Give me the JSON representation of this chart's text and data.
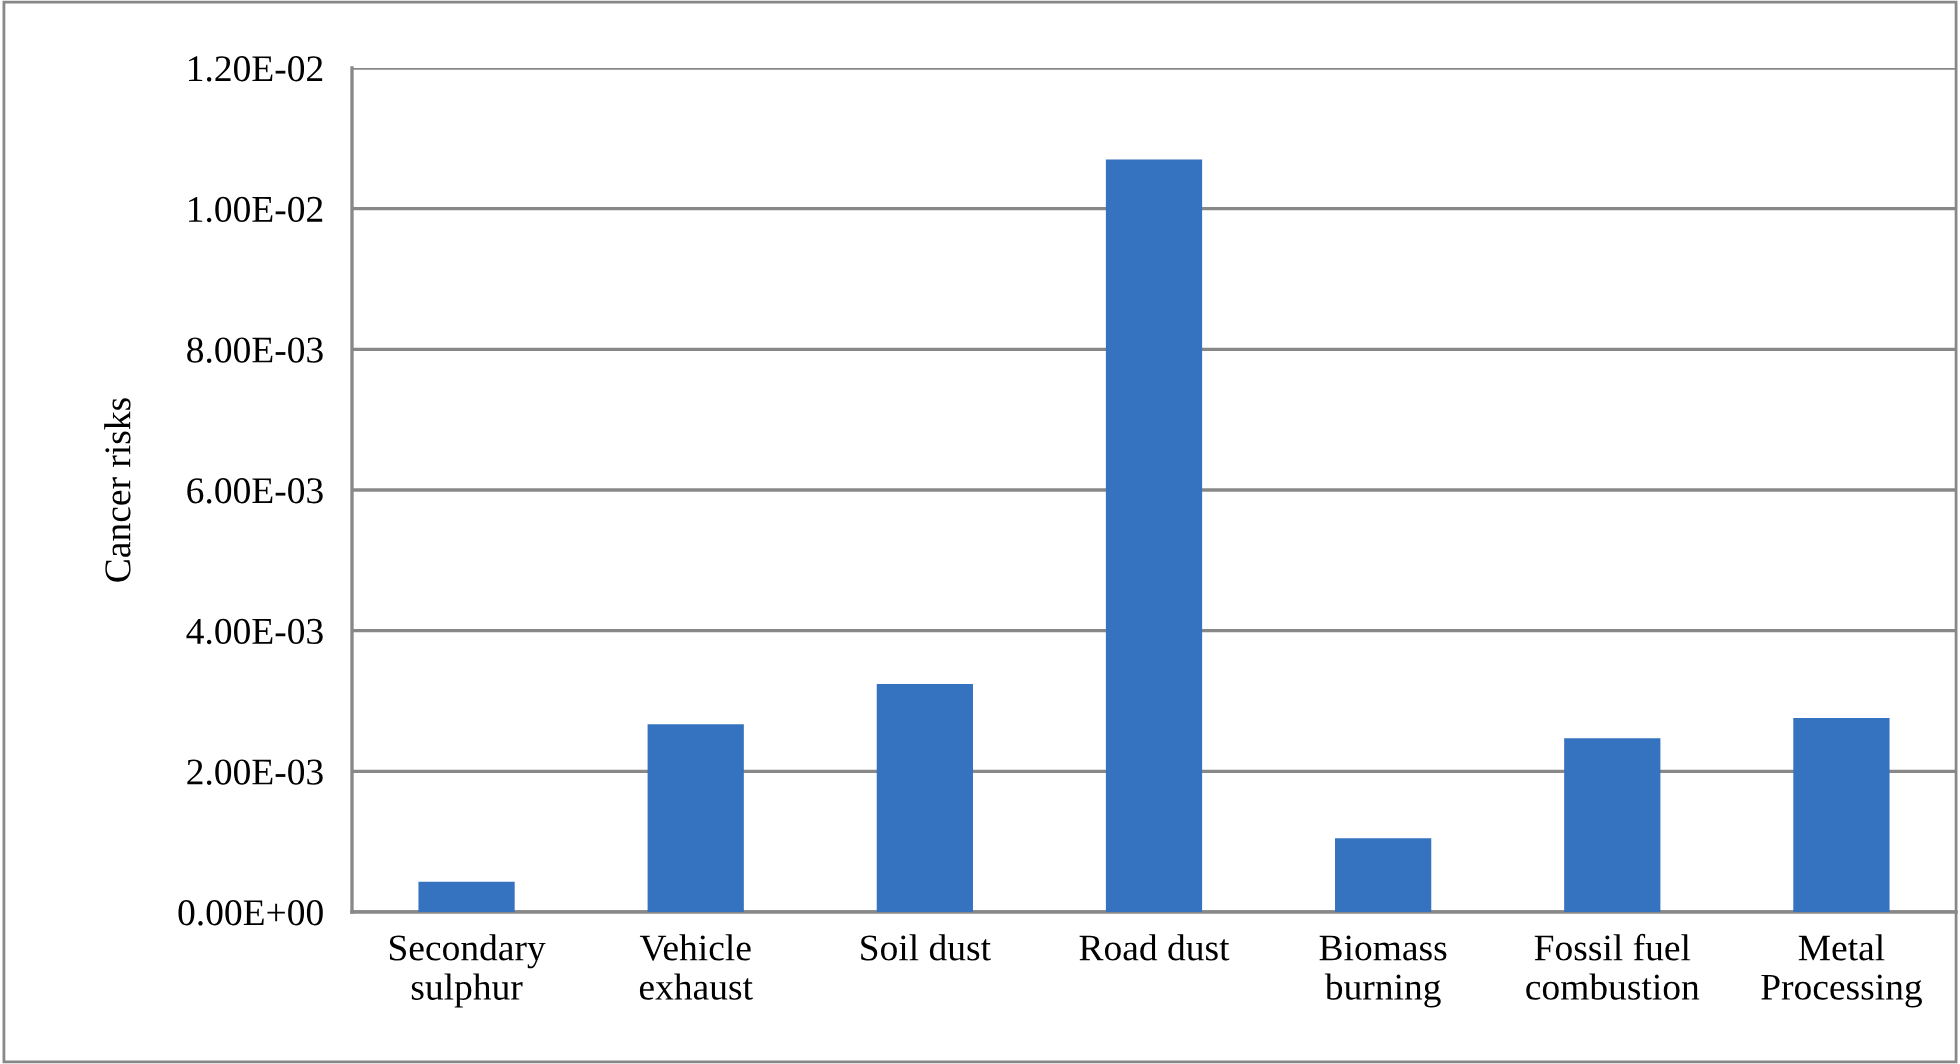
{
  "chart_data": {
    "type": "bar",
    "ylabel": "Cancer risks",
    "categories": [
      "Secondary\nsulphur",
      "Vehicle\nexhaust",
      "Soil dust",
      "Road dust",
      "Biomass\nburning",
      "Fossil fuel\ncombustion",
      "Metal\nProcessing"
    ],
    "values": [
      0.00043,
      0.00267,
      0.00324,
      0.0107,
      0.00105,
      0.00247,
      0.00276
    ],
    "color": "#3572bf",
    "ylim": [
      0,
      0.012
    ],
    "yticks": [
      {
        "value": 0,
        "label": "0.00E+00"
      },
      {
        "value": 0.002,
        "label": "2.00E-03"
      },
      {
        "value": 0.004,
        "label": "4.00E-03"
      },
      {
        "value": 0.006,
        "label": "6.00E-03"
      },
      {
        "value": 0.008,
        "label": "8.00E-03"
      },
      {
        "value": 0.01,
        "label": "1.00E-02"
      },
      {
        "value": 0.012,
        "label": "1.20E-02"
      }
    ],
    "grid": "y",
    "legend": false
  }
}
